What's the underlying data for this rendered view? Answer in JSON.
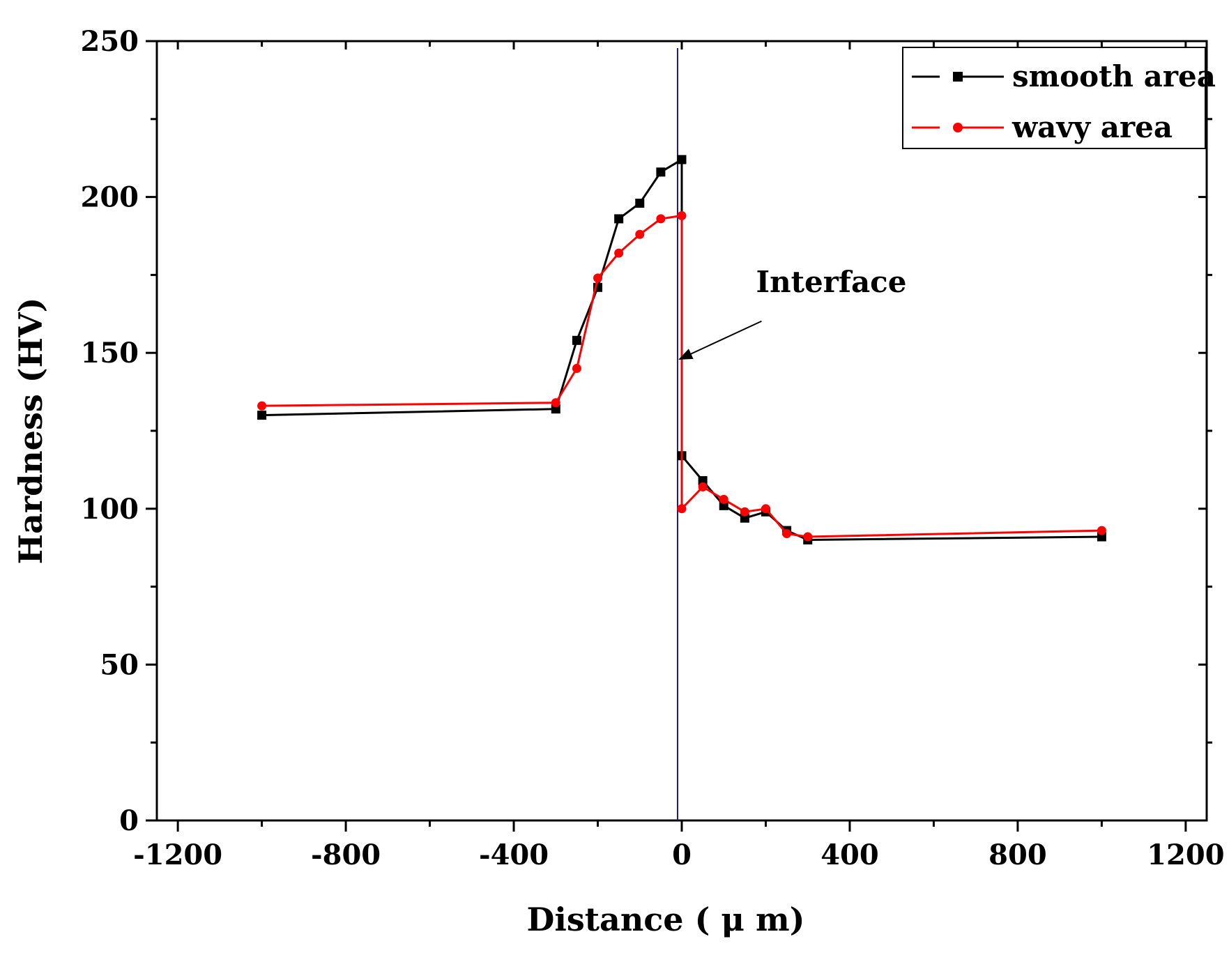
{
  "chart_data": {
    "type": "line",
    "title": "",
    "xlabel": "Distance ( μ m)",
    "ylabel": "Hardness (HV)",
    "xlim": [
      -1250,
      1250
    ],
    "ylim": [
      0,
      250
    ],
    "xticks": [
      -1200,
      -800,
      -400,
      0,
      400,
      800,
      1200
    ],
    "xtick_labels": [
      "-1200",
      "-800",
      "-400",
      "0",
      "400",
      "800",
      "1200"
    ],
    "xminor": [
      -1000,
      -600,
      -200,
      200,
      600,
      1000
    ],
    "yticks": [
      0,
      50,
      100,
      150,
      200,
      250
    ],
    "ytick_labels": [
      "0",
      "50",
      "100",
      "150",
      "200",
      "250"
    ],
    "yminor": [
      25,
      75,
      125,
      175,
      225
    ],
    "grid": false,
    "legend_position": "top-right",
    "series": [
      {
        "name": "smooth area",
        "color": "#000000",
        "marker": "square",
        "x": [
          -1000,
          -300,
          -250,
          -200,
          -150,
          -100,
          -50,
          0,
          0,
          50,
          100,
          150,
          200,
          250,
          300,
          1000
        ],
        "y": [
          130,
          132,
          154,
          171,
          193,
          198,
          208,
          212,
          117,
          109,
          101,
          97,
          99,
          93,
          90,
          91
        ]
      },
      {
        "name": "wavy area",
        "color": "#ff0000",
        "marker": "circle",
        "x": [
          -1000,
          -300,
          -250,
          -200,
          -150,
          -100,
          -50,
          0,
          0,
          50,
          100,
          150,
          200,
          250,
          300,
          1000
        ],
        "y": [
          133,
          134,
          145,
          174,
          182,
          188,
          193,
          194,
          100,
          107,
          103,
          99,
          100,
          92,
          91,
          93
        ]
      }
    ],
    "reference_line": {
      "x": -10,
      "color": "#1a1a8c"
    },
    "annotation": {
      "text": "Interface",
      "arrow_target": [
        -5,
        148
      ],
      "label_anchor": [
        190,
        170
      ]
    }
  }
}
